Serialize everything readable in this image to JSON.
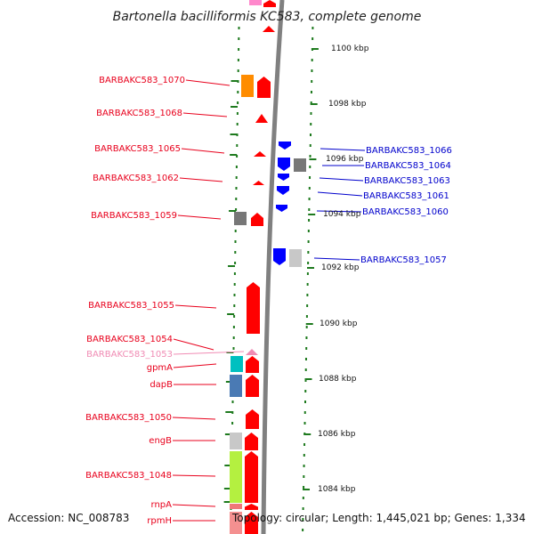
{
  "title": "Bartonella bacilliformis KC583, complete genome",
  "footer": {
    "accession": "Accession: NC_008783",
    "topology": "Topology: circular; Length: 1,445,021 bp; Genes: 1,334"
  },
  "colors": {
    "gene_red": "#ff0000",
    "gene_blue": "#0000ff",
    "pseudo_pink": "#f08cb4",
    "label_red": "#e8001c",
    "label_blue": "#0000cc",
    "backbone": "#808080",
    "ticks_green": "#1e7a1e"
  },
  "kbp_labels": [
    "1100 kbp",
    "1098 kbp",
    "1096 kbp",
    "1094 kbp",
    "1092 kbp",
    "1090 kbp",
    "1088 kbp",
    "1086 kbp",
    "1084 kbp"
  ],
  "left_labels": [
    {
      "text": "BARBAKC583_1070",
      "color": "red"
    },
    {
      "text": "BARBAKC583_1068",
      "color": "red"
    },
    {
      "text": "BARBAKC583_1065",
      "color": "red"
    },
    {
      "text": "BARBAKC583_1062",
      "color": "red"
    },
    {
      "text": "BARBAKC583_1059",
      "color": "red"
    },
    {
      "text": "BARBAKC583_1055",
      "color": "red"
    },
    {
      "text": "BARBAKC583_1054",
      "color": "red"
    },
    {
      "text": "BARBAKC583_1053",
      "color": "pink"
    },
    {
      "text": "gpmA",
      "color": "red"
    },
    {
      "text": "dapB",
      "color": "red"
    },
    {
      "text": "BARBAKC583_1050",
      "color": "red"
    },
    {
      "text": "engB",
      "color": "red"
    },
    {
      "text": "BARBAKC583_1048",
      "color": "red"
    },
    {
      "text": "rnpA",
      "color": "red"
    },
    {
      "text": "rpmH",
      "color": "red"
    }
  ],
  "right_labels": [
    {
      "text": "BARBAKC583_1066"
    },
    {
      "text": "BARBAKC583_1064"
    },
    {
      "text": "BARBAKC583_1063"
    },
    {
      "text": "BARBAKC583_1061"
    },
    {
      "text": "BARBAKC583_1060"
    },
    {
      "text": "BARBAKC583_1057"
    }
  ],
  "cog_colors": {
    "orange": "#ff8c00",
    "gray_dark": "#777777",
    "gray_light": "#c8c8c8",
    "cyan": "#00c0c0",
    "steelblue": "#4a7ab4",
    "lime": "#b4f040",
    "salmon": "#f07878",
    "pink": "#ff88cc"
  }
}
